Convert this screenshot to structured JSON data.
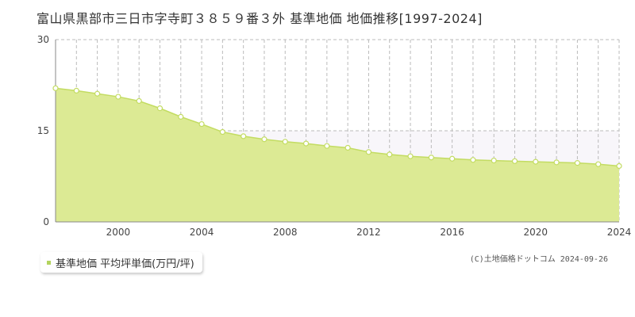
{
  "title": "富山県黒部市三日市字寺町３８５９番３外 基準地価 地価推移[1997-2024]",
  "legend_label": "基準地価 平均坪単価(万円/坪)",
  "credit": "(C)土地価格ドットコム 2024-09-26",
  "colors": {
    "fill": "#dcea94",
    "line": "#c3dc62",
    "marker_fill": "#ffffff",
    "upper_band": "#f8f6fa",
    "grid": "#bbbbbb",
    "axis": "#888888",
    "legend_swatch": "#b3d45f"
  },
  "chart_data": {
    "type": "area",
    "title": "富山県黒部市三日市字寺町３８５９番３外 基準地価 地価推移[1997-2024]",
    "xlabel": "",
    "ylabel": "",
    "xlim": [
      1997,
      2024
    ],
    "ylim": [
      0,
      30
    ],
    "x_ticks": [
      2000,
      2004,
      2008,
      2012,
      2016,
      2020,
      2024
    ],
    "y_ticks": [
      0,
      15,
      30
    ],
    "grid": true,
    "legend_position": "bottom-left",
    "series": [
      {
        "name": "基準地価 平均坪単価(万円/坪)",
        "x": [
          1997,
          1998,
          1999,
          2000,
          2001,
          2002,
          2003,
          2004,
          2005,
          2006,
          2007,
          2008,
          2009,
          2010,
          2011,
          2012,
          2013,
          2014,
          2015,
          2016,
          2017,
          2018,
          2019,
          2020,
          2021,
          2022,
          2023,
          2024
        ],
        "y": [
          22.0,
          21.6,
          21.1,
          20.6,
          19.9,
          18.7,
          17.3,
          16.1,
          14.8,
          14.1,
          13.6,
          13.2,
          12.9,
          12.5,
          12.2,
          11.5,
          11.1,
          10.8,
          10.6,
          10.4,
          10.2,
          10.1,
          10.0,
          9.9,
          9.8,
          9.7,
          9.5,
          9.2
        ]
      }
    ]
  }
}
